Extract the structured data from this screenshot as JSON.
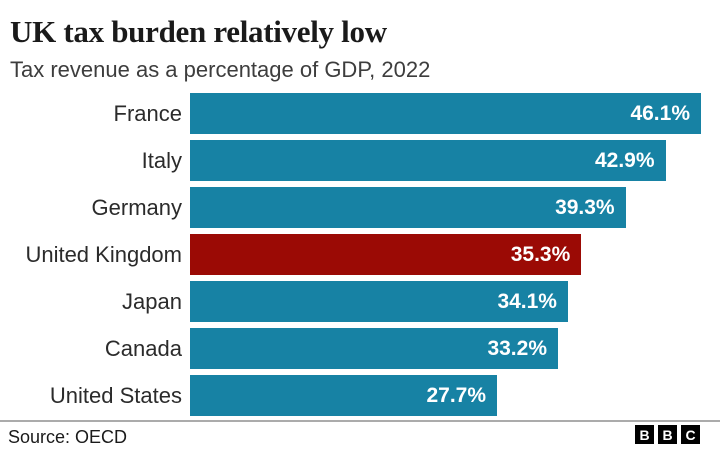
{
  "header": {
    "title": "UK tax burden relatively low",
    "subtitle": "Tax revenue as a percentage of GDP, 2022"
  },
  "chart_data": {
    "type": "bar",
    "orientation": "horizontal",
    "title": "UK tax burden relatively low",
    "subtitle": "Tax revenue as a percentage of GDP, 2022",
    "categories": [
      "France",
      "Italy",
      "Germany",
      "United Kingdom",
      "Japan",
      "Canada",
      "United States"
    ],
    "values": [
      46.1,
      42.9,
      39.3,
      35.3,
      34.1,
      33.2,
      27.7
    ],
    "value_labels": [
      "46.1%",
      "42.9%",
      "39.3%",
      "35.3%",
      "34.1%",
      "33.2%",
      "27.7%"
    ],
    "highlight_category": "United Kingdom",
    "bar_color": "#1782A4",
    "highlight_color": "#9B0A05",
    "xlabel": "",
    "ylabel": "",
    "xlim": [
      0,
      46.1
    ],
    "grid": false,
    "legend": false,
    "value_label_position": "inside-end",
    "value_label_color": "#ffffff"
  },
  "footer": {
    "source": "Source: OECD",
    "logo_letters": [
      "B",
      "B",
      "C"
    ]
  }
}
